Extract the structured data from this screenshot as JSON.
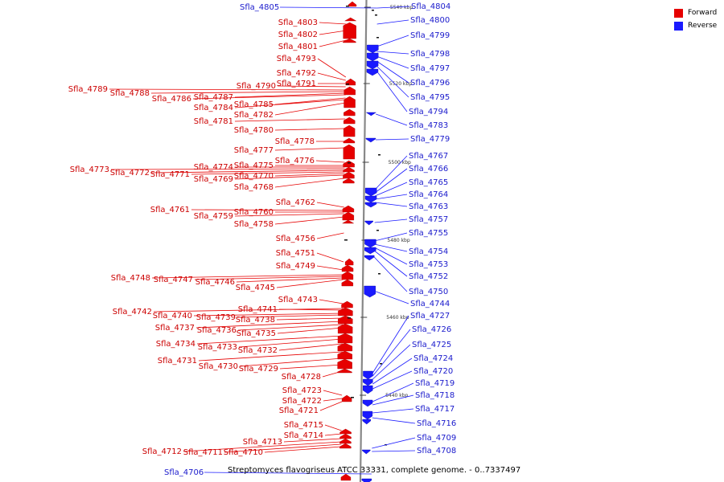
{
  "colors": {
    "forward": "#e60000",
    "reverse": "#1a1aff",
    "backbone": "#888888",
    "label_forward": "#cc0000",
    "label_reverse": "#1a1acc"
  },
  "legend": [
    {
      "label": "Forward",
      "color": "#e60000"
    },
    {
      "label": "Reverse",
      "color": "#1a1aff"
    }
  ],
  "caption": "Streptomyces flavogriseus ATCC 33331, complete genome. - 0..7337497",
  "scale_ticks": [
    "5540 kbp",
    "5520 kbp",
    "5500 kbp",
    "5480 kbp",
    "5460 kbp",
    "5440 kbp"
  ],
  "forward_labels": [
    "Sfla_4803",
    "Sfla_4802",
    "Sfla_4801",
    "Sfla_4793",
    "Sfla_4792",
    "Sfla_4791",
    "Sfla_4790",
    "Sfla_4789",
    "Sfla_4788",
    "Sfla_4787",
    "Sfla_4786",
    "Sfla_4785",
    "Sfla_4784",
    "Sfla_4782",
    "Sfla_4781",
    "Sfla_4780",
    "Sfla_4778",
    "Sfla_4777",
    "Sfla_4776",
    "Sfla_4775",
    "Sfla_4774",
    "Sfla_4773",
    "Sfla_4772",
    "Sfla_4771",
    "Sfla_4770",
    "Sfla_4769",
    "Sfla_4768",
    "Sfla_4762",
    "Sfla_4761",
    "Sfla_4760",
    "Sfla_4759",
    "Sfla_4758",
    "Sfla_4756",
    "Sfla_4751",
    "Sfla_4749",
    "Sfla_4748",
    "Sfla_4747",
    "Sfla_4746",
    "Sfla_4745",
    "Sfla_4743",
    "Sfla_4742",
    "Sfla_4741",
    "Sfla_4740",
    "Sfla_4739",
    "Sfla_4738",
    "Sfla_4737",
    "Sfla_4736",
    "Sfla_4735",
    "Sfla_4734",
    "Sfla_4733",
    "Sfla_4732",
    "Sfla_4731",
    "Sfla_4730",
    "Sfla_4729",
    "Sfla_4728",
    "Sfla_4723",
    "Sfla_4722",
    "Sfla_4721",
    "Sfla_4715",
    "Sfla_4714",
    "Sfla_4713",
    "Sfla_4712",
    "Sfla_4711",
    "Sfla_4710"
  ],
  "reverse_labels": [
    "Sfla_4805",
    "Sfla_4804",
    "Sfla_4800",
    "Sfla_4799",
    "Sfla_4798",
    "Sfla_4797",
    "Sfla_4796",
    "Sfla_4795",
    "Sfla_4794",
    "Sfla_4783",
    "Sfla_4779",
    "Sfla_4767",
    "Sfla_4766",
    "Sfla_4765",
    "Sfla_4764",
    "Sfla_4763",
    "Sfla_4757",
    "Sfla_4755",
    "Sfla_4754",
    "Sfla_4753",
    "Sfla_4752",
    "Sfla_4750",
    "Sfla_4744",
    "Sfla_4727",
    "Sfla_4726",
    "Sfla_4725",
    "Sfla_4724",
    "Sfla_4720",
    "Sfla_4719",
    "Sfla_4718",
    "Sfla_4717",
    "Sfla_4716",
    "Sfla_4709",
    "Sfla_4708",
    "Sfla_4706"
  ]
}
